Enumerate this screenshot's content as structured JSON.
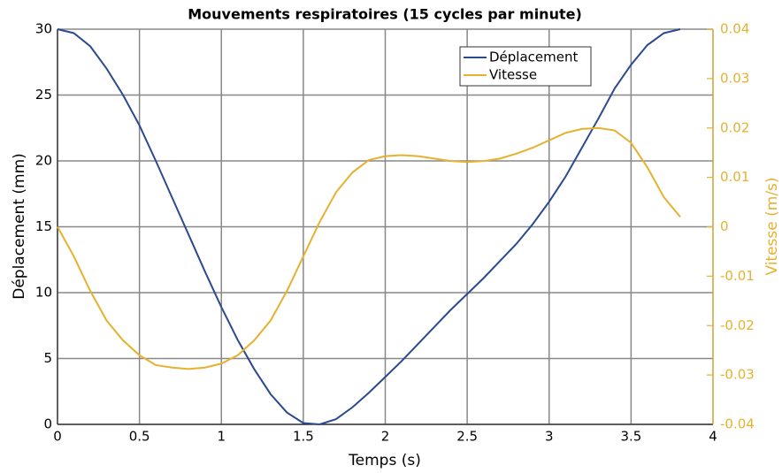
{
  "chart_data": {
    "type": "line",
    "title": "Mouvements respiratoires (15 cycles par minute)",
    "xlabel": "Temps (s)",
    "ylabel": "Déplacement (mm)",
    "y2label": "Vitesse (m/s)",
    "x": [
      0,
      0.1,
      0.2,
      0.3,
      0.4,
      0.5,
      0.6,
      0.7,
      0.8,
      0.9,
      1.0,
      1.1,
      1.2,
      1.3,
      1.4,
      1.5,
      1.6,
      1.7,
      1.8,
      1.9,
      2.0,
      2.1,
      2.2,
      2.3,
      2.4,
      2.5,
      2.6,
      2.7,
      2.8,
      2.9,
      3.0,
      3.1,
      3.2,
      3.3,
      3.4,
      3.5,
      3.6,
      3.7,
      3.8
    ],
    "series": [
      {
        "name": "Déplacement",
        "color": "#2b4a8f",
        "axis": "y",
        "values": [
          30,
          29.7,
          28.7,
          27,
          25,
          22.7,
          20,
          17.2,
          14.4,
          11.6,
          8.9,
          6.4,
          4.2,
          2.3,
          0.9,
          0.1,
          0,
          0.4,
          1.3,
          2.4,
          3.6,
          4.8,
          6.1,
          7.4,
          8.7,
          9.9,
          11.1,
          12.4,
          13.7,
          15.2,
          16.9,
          18.8,
          21,
          23.2,
          25.5,
          27.3,
          28.8,
          29.7,
          30
        ]
      },
      {
        "name": "Vitesse",
        "color": "#e6b12e",
        "axis": "y2",
        "values": [
          0,
          -0.006,
          -0.013,
          -0.019,
          -0.023,
          -0.026,
          -0.028,
          -0.0285,
          -0.0288,
          -0.0285,
          -0.0277,
          -0.026,
          -0.023,
          -0.019,
          -0.013,
          -0.006,
          0.001,
          0.007,
          0.011,
          0.0135,
          0.0143,
          0.0145,
          0.0143,
          0.0138,
          0.0133,
          0.0131,
          0.0133,
          0.0138,
          0.0148,
          0.016,
          0.0175,
          0.019,
          0.0198,
          0.02,
          0.0195,
          0.017,
          0.012,
          0.006,
          0.002
        ]
      }
    ],
    "xlim": [
      0,
      4
    ],
    "xticks": [
      0,
      0.5,
      1,
      1.5,
      2,
      2.5,
      3,
      3.5,
      4
    ],
    "ylim": [
      0,
      30
    ],
    "yticks": [
      0,
      5,
      10,
      15,
      20,
      25,
      30
    ],
    "y2lim": [
      -0.04,
      0.04
    ],
    "y2ticks": [
      -0.04,
      -0.03,
      -0.02,
      -0.01,
      0,
      0.01,
      0.02,
      0.03,
      0.04
    ],
    "grid": true,
    "legend": "upper right"
  }
}
